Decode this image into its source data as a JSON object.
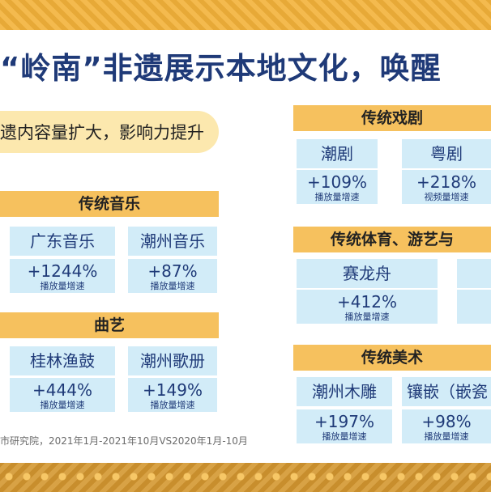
{
  "title": "“岭南”非遗展示本地文化，唤醒",
  "subtitle": "遗内容量扩大，影响力提升",
  "source": "市研究院，2021年1月-2021年10月VS2020年1月-10月",
  "colors": {
    "band": "#f6c15e",
    "card": "#d2ecf8",
    "title": "#1f3a78",
    "frame": "#f3b23a"
  },
  "sections": {
    "music": {
      "title": "传统音乐",
      "cards": [
        {
          "name": "广东音乐",
          "value": "+1244%",
          "metric": "播放量增速"
        },
        {
          "name": "潮州音乐",
          "value": "+87%",
          "metric": "播放量增速"
        }
      ]
    },
    "quyi": {
      "title": "曲艺",
      "cards": [
        {
          "name": "桂林渔鼓",
          "value": "+444%",
          "metric": "播放量增速"
        },
        {
          "name": "潮州歌册",
          "value": "+149%",
          "metric": "播放量增速"
        }
      ]
    },
    "opera": {
      "title": "传统戏剧",
      "cards": [
        {
          "name": "潮剧",
          "value": "+109%",
          "metric": "播放量增速"
        },
        {
          "name": "粤剧",
          "value": "+218%",
          "metric": "视频量增速"
        }
      ]
    },
    "sports": {
      "title": "传统体育、游艺与",
      "cards": [
        {
          "name": "赛龙舟",
          "value": "+412%",
          "metric": "播放量增速"
        }
      ]
    },
    "art": {
      "title": "传统美术",
      "cards": [
        {
          "name": "潮州木雕",
          "value": "+197%",
          "metric": "播放量增速"
        },
        {
          "name": "镶嵌（嵌瓷",
          "value": "+98%",
          "metric": "播放量增速"
        }
      ]
    }
  }
}
